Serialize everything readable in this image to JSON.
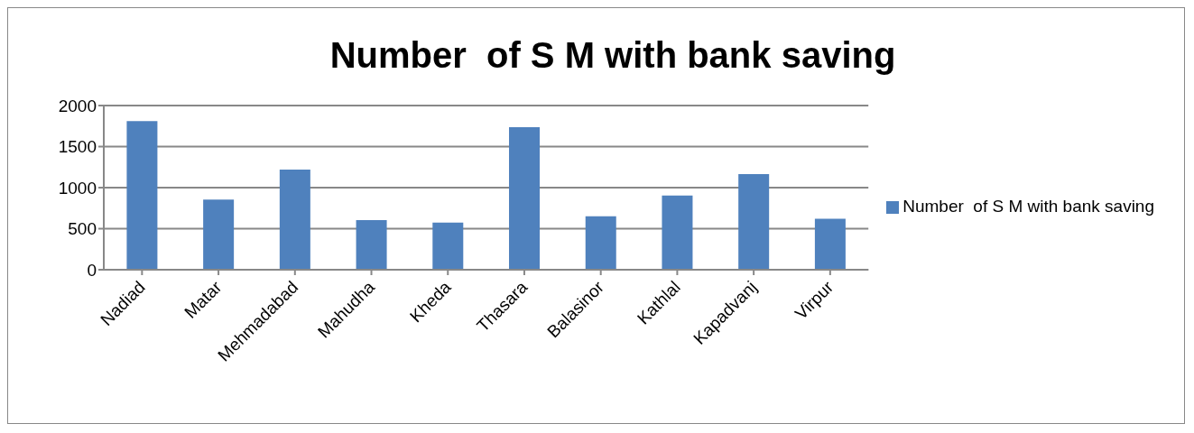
{
  "chart_data": {
    "type": "bar",
    "title": "Number  of S M with bank saving",
    "categories": [
      "Nadiad",
      "Matar",
      "Mehmadabad",
      "Mahudha",
      "Kheda",
      "Thasara",
      "Balasinor",
      "Kathlal",
      "Kapadvanj",
      "Virpur"
    ],
    "series": [
      {
        "name": "Number  of S M with bank saving",
        "color": "#4f81bd",
        "values": [
          1810,
          855,
          1220,
          605,
          575,
          1735,
          650,
          905,
          1165,
          620
        ]
      }
    ],
    "ylim": [
      0,
      2000
    ],
    "yticks": [
      0,
      500,
      1000,
      1500,
      2000
    ],
    "grid": "y",
    "legend": "right"
  }
}
